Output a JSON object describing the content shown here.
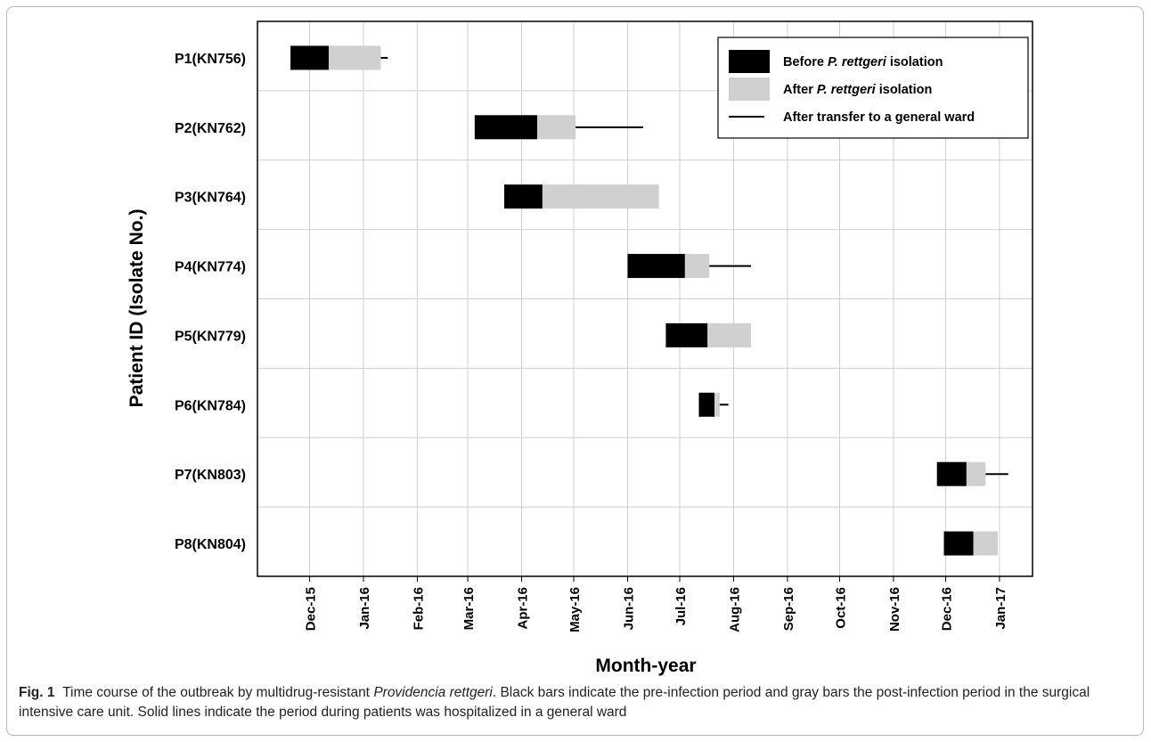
{
  "chart_data": {
    "type": "gantt",
    "xlabel": "Month-year",
    "ylabel": "Patient ID (Isolate No.)",
    "x_ticks": [
      "Dec-15",
      "Jan-16",
      "Feb-16",
      "Mar-16",
      "Apr-16",
      "May-16",
      "Jun-16",
      "Jul-16",
      "Aug-16",
      "Sep-16",
      "Oct-16",
      "Nov-16",
      "Dec-16",
      "Jan-17"
    ],
    "xlim": [
      "2015-11-01",
      "2017-01-20"
    ],
    "legend": {
      "position": "top-right",
      "entries": [
        {
          "kind": "before",
          "label_prefix": "Before ",
          "label_italic": "P. rettgeri",
          "label_suffix": " isolation",
          "color": "#000000"
        },
        {
          "kind": "after",
          "label_prefix": "After ",
          "label_italic": "P. rettgeri",
          "label_suffix": " isolation",
          "color": "#d0d0d0"
        },
        {
          "kind": "ward",
          "label_prefix": "After transfer to a general ward",
          "label_italic": "",
          "label_suffix": "",
          "color": "#000000"
        }
      ]
    },
    "patients": [
      {
        "id": "P1(KN756)",
        "before_start": "2015-11-20",
        "isolation": "2015-12-12",
        "after_end": "2016-01-11",
        "ward_end": "2016-01-15"
      },
      {
        "id": "P2(KN762)",
        "before_start": "2016-03-05",
        "isolation": "2016-04-10",
        "after_end": "2016-05-02",
        "ward_end": "2016-06-10"
      },
      {
        "id": "P3(KN764)",
        "before_start": "2016-03-22",
        "isolation": "2016-04-13",
        "after_end": "2016-06-19",
        "ward_end": null
      },
      {
        "id": "P4(KN774)",
        "before_start": "2016-06-01",
        "isolation": "2016-07-04",
        "after_end": "2016-07-18",
        "ward_end": "2016-08-11"
      },
      {
        "id": "P5(KN779)",
        "before_start": "2016-06-23",
        "isolation": "2016-07-17",
        "after_end": "2016-08-11",
        "ward_end": null
      },
      {
        "id": "P6(KN784)",
        "before_start": "2016-07-12",
        "isolation": "2016-07-21",
        "after_end": "2016-07-24",
        "ward_end": "2016-07-29"
      },
      {
        "id": "P7(KN803)",
        "before_start": "2016-11-26",
        "isolation": "2016-12-13",
        "after_end": "2016-12-24",
        "ward_end": "2017-01-06"
      },
      {
        "id": "P8(KN804)",
        "before_start": "2016-11-30",
        "isolation": "2016-12-17",
        "after_end": "2016-12-31",
        "ward_end": null
      }
    ],
    "grid": true
  },
  "caption": {
    "label": "Fig. 1",
    "text_1": "Time course of the outbreak by multidrug-resistant ",
    "text_italic": "Providencia rettgeri",
    "text_2": ". Black bars indicate the pre-infection period and gray bars the post-infection period in the surgical intensive care unit. Solid lines indicate the period during patients was hospitalized in a general ward"
  }
}
